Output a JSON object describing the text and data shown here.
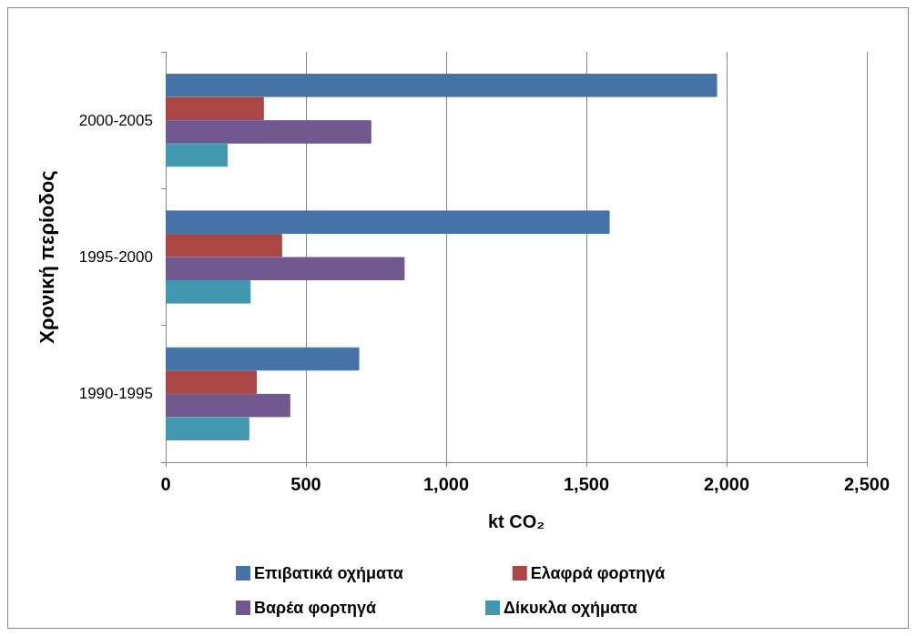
{
  "chart_data": {
    "type": "bar",
    "orientation": "horizontal",
    "xlabel": "kt CO₂",
    "ylabel": "Χρονική περίοδος",
    "categories": [
      "2000-2005",
      "1995-2000",
      "1990-1995"
    ],
    "series": [
      {
        "name": "Επιβατικά οχήματα",
        "color": "#4573a7",
        "values": [
          1966,
          1583,
          690
        ]
      },
      {
        "name": "Ελαφρά φορτηγά",
        "color": "#aa4644",
        "values": [
          350,
          415,
          325
        ]
      },
      {
        "name": "Βαρέα φορτηγά",
        "color": "#71588f",
        "values": [
          733,
          852,
          444
        ]
      },
      {
        "name": "Δίκυκλα οχήματα",
        "color": "#4298af",
        "values": [
          221,
          303,
          298
        ]
      }
    ],
    "xlim": [
      0,
      2500
    ],
    "xticks": [
      0,
      500,
      {
        "value": 1000,
        "label": "1,000"
      },
      {
        "value": 1500,
        "label": "1,500"
      },
      {
        "value": 2000,
        "label": "2,000"
      },
      {
        "value": 2500,
        "label": "2,500"
      }
    ],
    "grid": "x",
    "legend": "bottom"
  }
}
